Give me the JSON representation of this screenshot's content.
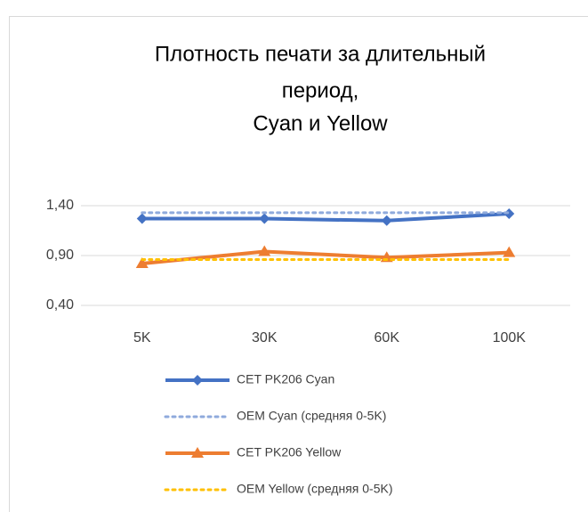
{
  "chart_data": {
    "type": "line",
    "title": [
      "Плотность печати за длительный",
      "период,",
      "Cyan и Yellow"
    ],
    "categories": [
      "5K",
      "30K",
      "60K",
      "100K"
    ],
    "series": [
      {
        "name": "CET PK206 Cyan",
        "color": "#4472c4",
        "values": [
          1.27,
          1.27,
          1.25,
          1.32
        ],
        "dotted": false,
        "marker": "diamond"
      },
      {
        "name": "OEM Cyan (средняя 0-5K)",
        "color": "#8faadc",
        "values": [
          1.33,
          1.33,
          1.33,
          1.33
        ],
        "dotted": true,
        "marker": null
      },
      {
        "name": "CET PK206 Yellow",
        "color": "#ed7d31",
        "values": [
          0.82,
          0.94,
          0.88,
          0.93
        ],
        "dotted": false,
        "marker": "triangle"
      },
      {
        "name": "OEM Yellow (средняя 0-5K)",
        "color": "#ffc000",
        "values": [
          0.86,
          0.86,
          0.86,
          0.86
        ],
        "dotted": true,
        "marker": null
      }
    ],
    "ylim": [
      0.4,
      1.4
    ],
    "yticks": [
      {
        "value": 0.4,
        "label": "0,40"
      },
      {
        "value": 0.9,
        "label": "0,90"
      },
      {
        "value": 1.4,
        "label": "1,40"
      }
    ],
    "grid": true,
    "legend": "bottom"
  }
}
